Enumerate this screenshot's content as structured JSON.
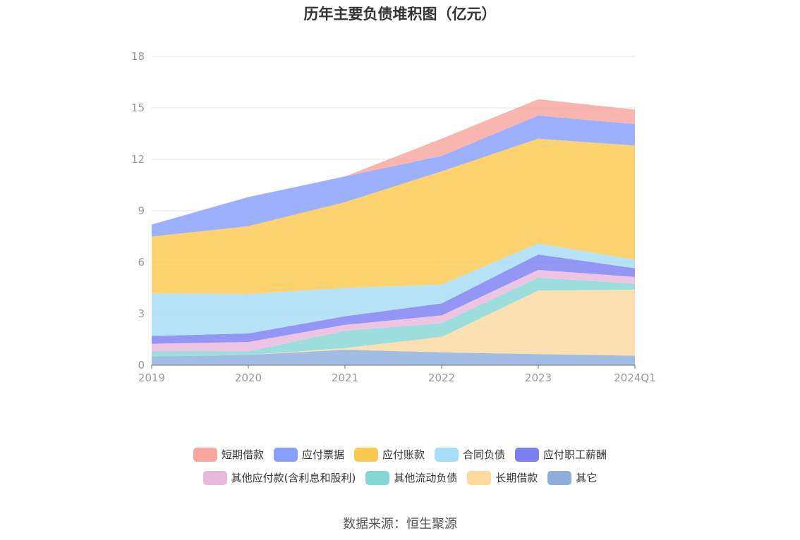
{
  "title": "历年主要负债堆积图（亿元）",
  "source": "数据来源：恒生聚源",
  "chart_data": {
    "type": "area",
    "stacked": true,
    "categories": [
      "2019",
      "2020",
      "2021",
      "2022",
      "2023",
      "2024Q1"
    ],
    "ylim": [
      0,
      18
    ],
    "yticks": [
      "0",
      "3",
      "6",
      "9",
      "12",
      "15",
      "18"
    ],
    "grid": true,
    "legend_position": "bottom",
    "series": [
      {
        "name": "其它",
        "color": "#8eaedd",
        "values": [
          0.5,
          0.6,
          0.9,
          0.75,
          0.65,
          0.55
        ]
      },
      {
        "name": "长期借款",
        "color": "#fdd9a0",
        "values": [
          0,
          0,
          0.1,
          0.9,
          3.7,
          3.85
        ]
      },
      {
        "name": "其他流动负债",
        "color": "#86d6d6",
        "values": [
          0.3,
          0.2,
          1.0,
          0.8,
          0.75,
          0.35
        ]
      },
      {
        "name": "其他应付款(含利息和股利)",
        "color": "#e9b8dc",
        "values": [
          0.45,
          0.55,
          0.35,
          0.45,
          0.45,
          0.4
        ]
      },
      {
        "name": "应付职工薪酬",
        "color": "#7b7ff2",
        "values": [
          0.45,
          0.5,
          0.5,
          0.7,
          0.9,
          0.5
        ]
      },
      {
        "name": "合同负债",
        "color": "#a6ddf7",
        "values": [
          2.5,
          2.3,
          1.65,
          1.1,
          0.65,
          0.5
        ]
      },
      {
        "name": "应付账款",
        "color": "#fcc94f",
        "values": [
          3.3,
          3.95,
          5.0,
          6.6,
          6.1,
          6.65
        ]
      },
      {
        "name": "应付票据",
        "color": "#869ffc",
        "values": [
          0.7,
          1.7,
          1.5,
          0.9,
          1.35,
          1.25
        ]
      },
      {
        "name": "短期借款",
        "color": "#f8a69e",
        "values": [
          0,
          0,
          0,
          1.0,
          0.95,
          0.85
        ]
      }
    ],
    "legend_order": [
      "短期借款",
      "应付票据",
      "应付账款",
      "合同负债",
      "应付职工薪酬",
      "其他应付款(含利息和股利)",
      "其他流动负债",
      "长期借款",
      "其它"
    ]
  }
}
